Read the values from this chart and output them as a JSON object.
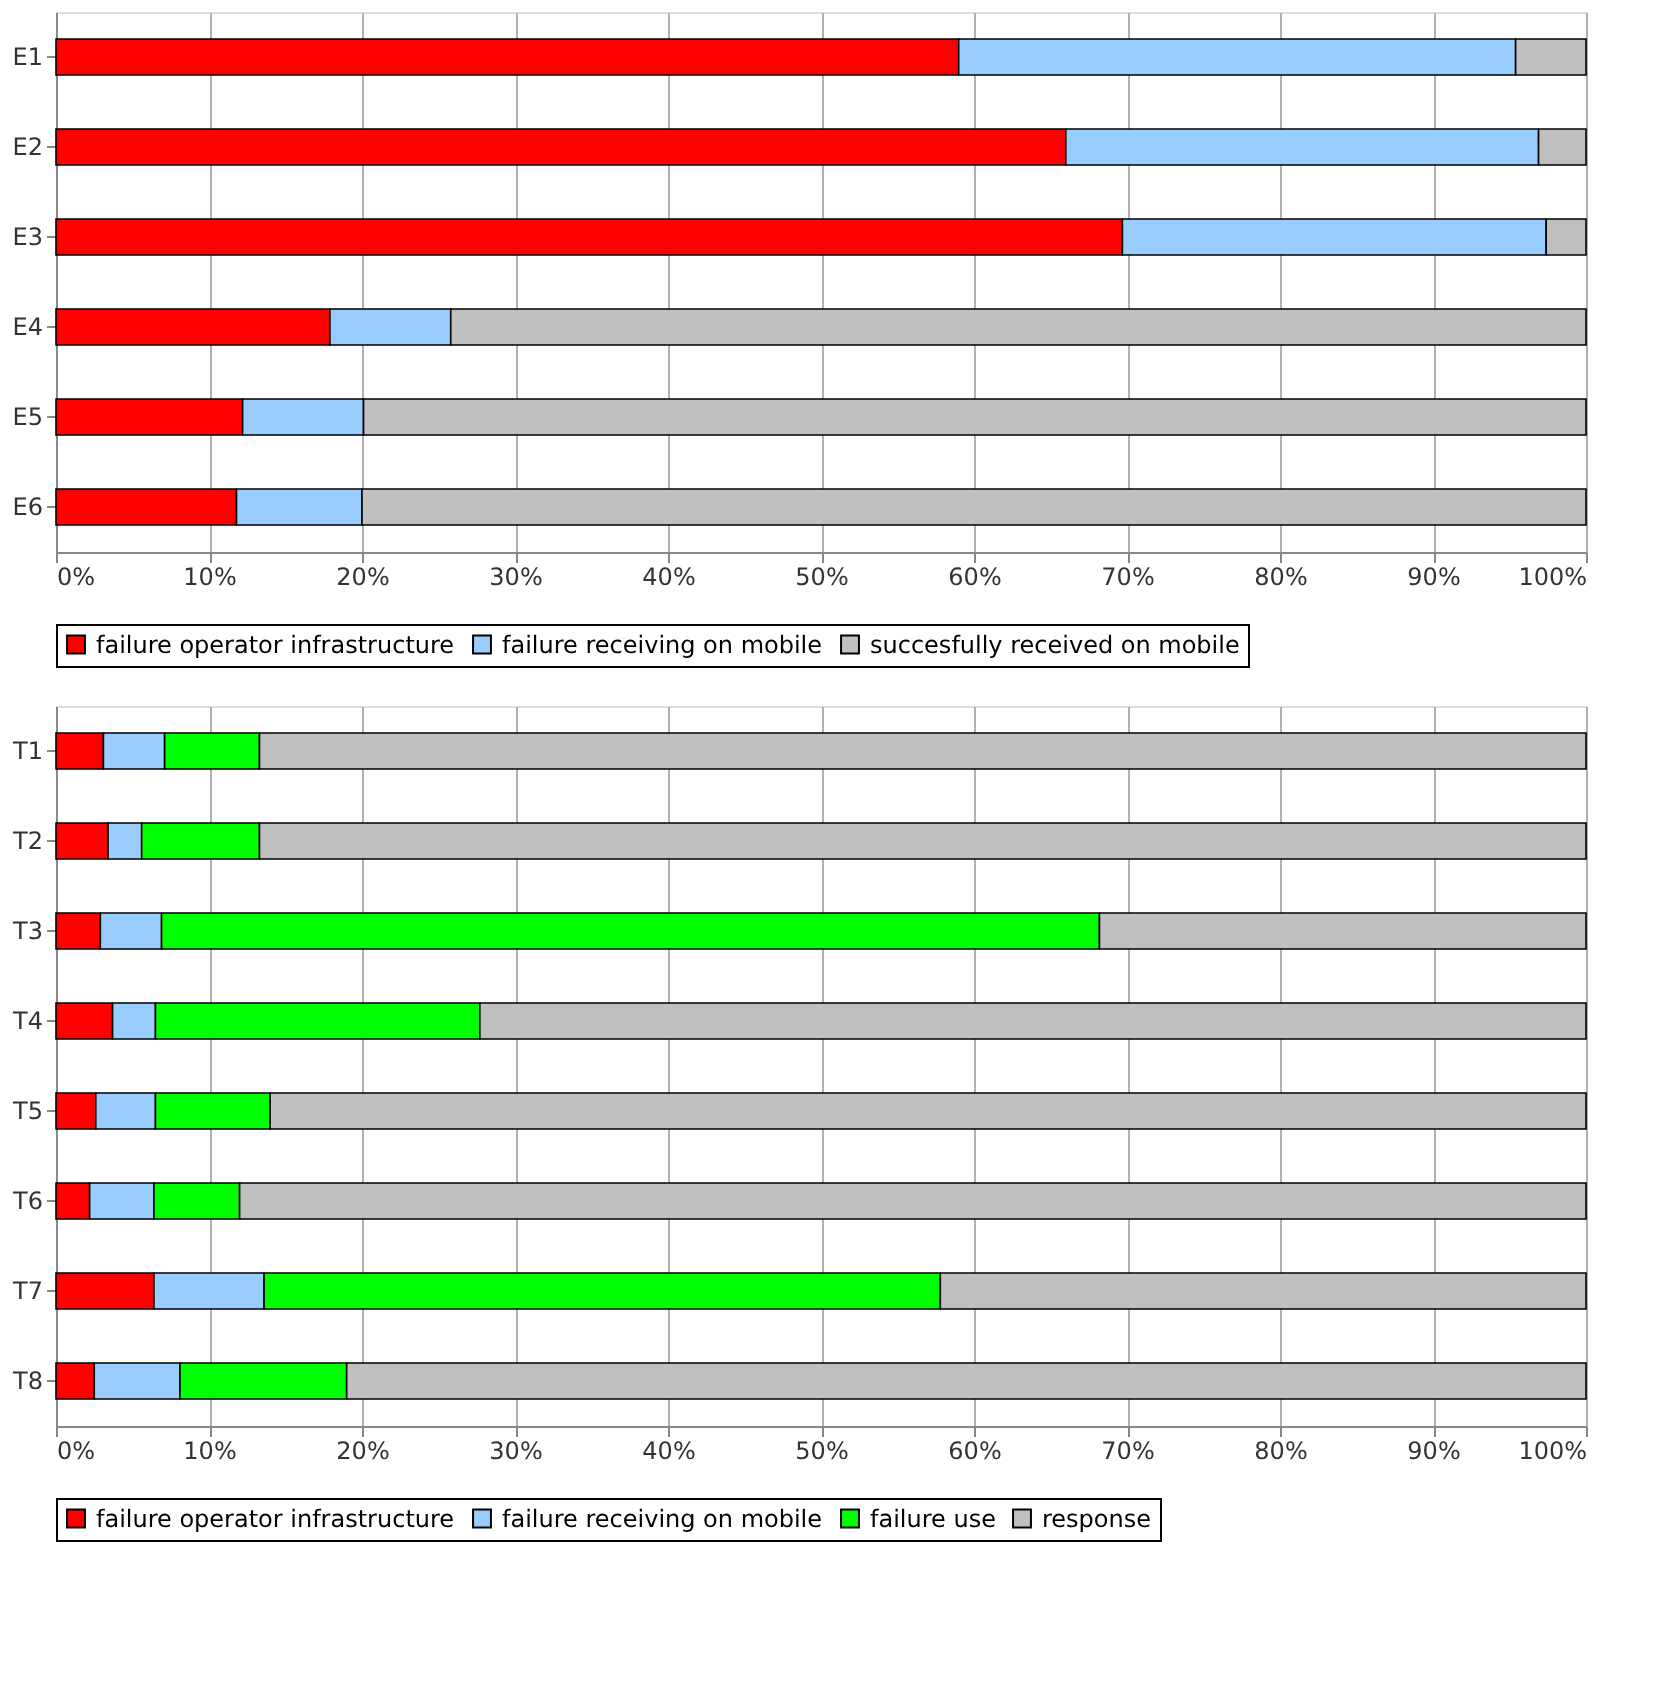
{
  "chart_data": [
    {
      "type": "bar",
      "orientation": "horizontal",
      "stacked": true,
      "categories": [
        "E1",
        "E2",
        "E3",
        "E4",
        "E5",
        "E6"
      ],
      "series": [
        {
          "name": "failure operator infrastructure",
          "color": "#ff0000",
          "values": [
            59.0,
            66.0,
            69.7,
            17.9,
            12.2,
            11.8
          ]
        },
        {
          "name": "failure receiving on mobile",
          "color": "#99ccff",
          "values": [
            36.4,
            30.9,
            27.7,
            7.9,
            7.9,
            8.2
          ]
        },
        {
          "name": "succesfully received on mobile",
          "color": "#c0c0c0",
          "values": [
            4.6,
            3.1,
            2.6,
            74.2,
            79.9,
            80.0
          ]
        }
      ],
      "xlim": [
        0,
        100
      ],
      "xticks": [
        {
          "value": 0,
          "label": "0%"
        },
        {
          "value": 10,
          "label": "10%"
        },
        {
          "value": 20,
          "label": "20%"
        },
        {
          "value": 30,
          "label": "30%"
        },
        {
          "value": 40,
          "label": "40%"
        },
        {
          "value": 50,
          "label": "50%"
        },
        {
          "value": 60,
          "label": "60%"
        },
        {
          "value": 70,
          "label": "70%"
        },
        {
          "value": 80,
          "label": "80%"
        },
        {
          "value": 90,
          "label": "90%"
        },
        {
          "value": 100,
          "label": "100%"
        }
      ],
      "grid": "x",
      "legend": "bottom"
    },
    {
      "type": "bar",
      "orientation": "horizontal",
      "stacked": true,
      "categories": [
        "T1",
        "T2",
        "T3",
        "T4",
        "T5",
        "T6",
        "T7",
        "T8"
      ],
      "series": [
        {
          "name": "failure operator infrastructure",
          "color": "#ff0000",
          "values": [
            3.1,
            3.4,
            2.9,
            3.7,
            2.6,
            2.2,
            6.4,
            2.5
          ]
        },
        {
          "name": "failure receiving on mobile",
          "color": "#99ccff",
          "values": [
            4.0,
            2.2,
            4.0,
            2.8,
            3.9,
            4.2,
            7.2,
            5.6
          ]
        },
        {
          "name": "failure use",
          "color": "#00ff00",
          "values": [
            6.2,
            7.7,
            61.3,
            21.2,
            7.5,
            5.6,
            44.2,
            10.9
          ]
        },
        {
          "name": "response",
          "color": "#c0c0c0",
          "values": [
            86.7,
            86.7,
            31.8,
            72.3,
            86.0,
            88.0,
            42.2,
            81.0
          ]
        }
      ],
      "xlim": [
        0,
        100
      ],
      "xticks": [
        {
          "value": 0,
          "label": "0%"
        },
        {
          "value": 10,
          "label": "10%"
        },
        {
          "value": 20,
          "label": "20%"
        },
        {
          "value": 30,
          "label": "30%"
        },
        {
          "value": 40,
          "label": "40%"
        },
        {
          "value": 50,
          "label": "50%"
        },
        {
          "value": 60,
          "label": "60%"
        },
        {
          "value": 70,
          "label": "70%"
        },
        {
          "value": 80,
          "label": "80%"
        },
        {
          "value": 90,
          "label": "90%"
        },
        {
          "value": 100,
          "label": "100%"
        }
      ],
      "grid": "x",
      "legend": "bottom"
    }
  ]
}
